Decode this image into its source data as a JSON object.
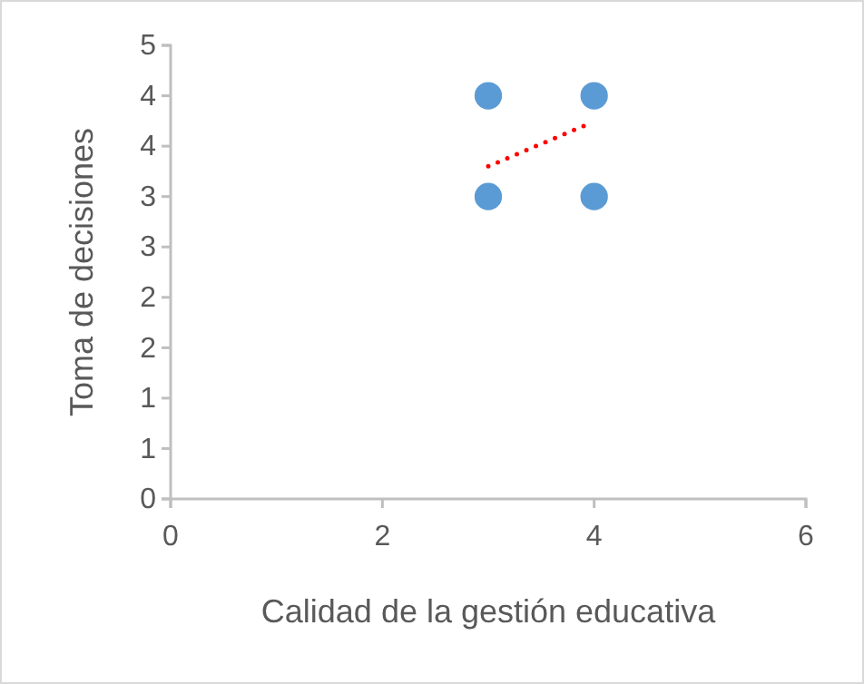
{
  "chart_data": {
    "type": "scatter",
    "xlabel": "Calidad de la gestión educativa",
    "ylabel": "Toma de decisiones",
    "xlim": [
      0,
      6
    ],
    "xticks": [
      0,
      2,
      4,
      6
    ],
    "ylim": [
      0,
      4.5
    ],
    "yticks": [
      0,
      {
        "value": 0.5,
        "label": "1"
      },
      1,
      {
        "value": 1.5,
        "label": "2"
      },
      2,
      {
        "value": 2.5,
        "label": "3"
      },
      3,
      {
        "value": 3.5,
        "label": "4"
      },
      4,
      {
        "value": 4.5,
        "label": "5"
      }
    ],
    "grid": false,
    "series": [
      {
        "color": "#5b9bd5",
        "marker": "circle",
        "x": [
          3,
          3,
          4,
          4
        ],
        "values": [
          4,
          3,
          4,
          3
        ]
      },
      {
        "type": "line",
        "color": "#ff0000",
        "line_style": "dotted",
        "marker": "none",
        "x": [
          3,
          3.9
        ],
        "values": [
          3.3,
          3.7
        ]
      }
    ]
  }
}
